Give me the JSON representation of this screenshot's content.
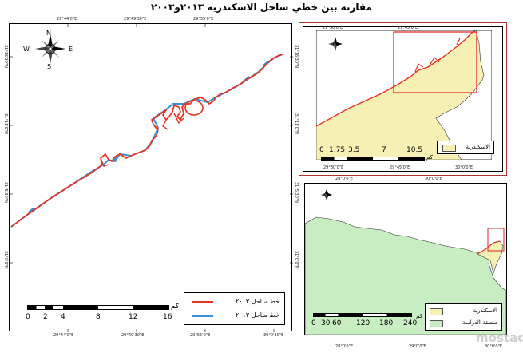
{
  "title": "مقارنه بين خطي ساحل الاسكندرية ٢٠١٣و٢٠٠٣",
  "main_map": {
    "top_ticks": [
      "29°44'0\"E",
      "29°49'30\"E",
      "29°55'0\"E"
    ],
    "bottom_ticks": [
      "29°44'0\"E",
      "29°49'30\"E",
      "29°55'0\"E",
      "30°0'30\"E"
    ],
    "left_ticks": [
      "31°16'30\"N",
      "31°11'0\"N",
      "31°5'30\"N",
      "31°0'0\"N"
    ],
    "right_ticks": [
      "31°16'30\"N",
      "31°11'0\"N",
      "31°5'30\"N",
      "31°0'0\"N"
    ],
    "compass": {
      "n": "N",
      "s": "S",
      "e": "E",
      "w": "W"
    },
    "legend": [
      {
        "label": "خط ساحل ٢٠٠٣",
        "color": "#e8321e"
      },
      {
        "label": "خط ساحل ٢٠١٣",
        "color": "#3a8fd8"
      }
    ],
    "scale": {
      "unit": "كم",
      "labels": [
        "0",
        "2",
        "4",
        "8",
        "12",
        "16"
      ]
    }
  },
  "inset_top": {
    "top_ticks": [
      "29°30'0\"E",
      "29°45'0\"E"
    ],
    "bottom_ticks": [
      "29°30'0\"E",
      "29°45'0\"E",
      "30°0'0\"E"
    ],
    "legend_label": "الاسكندرية",
    "fill_color": "#f6f0b4",
    "scale": {
      "unit": "كم",
      "labels": [
        "0",
        "1.75",
        "3.5",
        "7",
        "10.5"
      ]
    }
  },
  "inset_bottom": {
    "top_ticks": [
      "28°0'0\"E",
      "30°0'0\"E"
    ],
    "bottom_ticks": [
      "28°0'0\"E",
      "29°0'0\"E",
      "30°0'0\"E"
    ],
    "legend": [
      {
        "label": "الاسكندرية",
        "color": "#f6f0b4"
      },
      {
        "label": "منطقة الدراسة",
        "color": "#c9edc2"
      }
    ],
    "scale": {
      "unit": "كم",
      "labels": [
        "0",
        "30",
        "60",
        "120",
        "180",
        "240"
      ]
    }
  },
  "watermark": "mostaql"
}
